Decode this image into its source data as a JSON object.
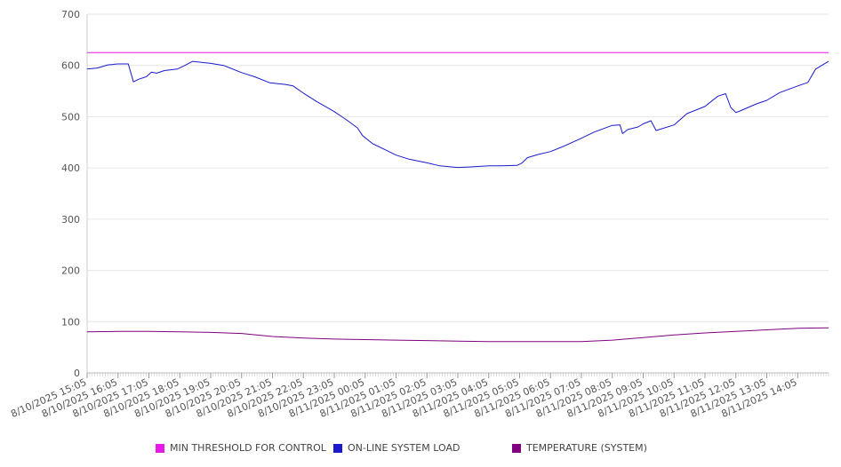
{
  "chart_data": {
    "type": "line",
    "title": "",
    "xlabel": "",
    "ylabel": "",
    "ylim": [
      0,
      700
    ],
    "yticks": [
      "0",
      "100",
      "200",
      "300",
      "400",
      "500",
      "600",
      "700"
    ],
    "grid": true,
    "legend_position": "bottom",
    "x_tick_labels": [
      "8/10/2025 15:05",
      "8/10/2025 16:05",
      "8/10/2025 17:05",
      "8/10/2025 18:05",
      "8/10/2025 19:05",
      "8/10/2025 20:05",
      "8/10/2025 21:05",
      "8/10/2025 22:05",
      "8/10/2025 23:05",
      "8/11/2025 00:05",
      "8/11/2025 01:05",
      "8/11/2025 02:05",
      "8/11/2025 03:05",
      "8/11/2025 04:05",
      "8/11/2025 05:05",
      "8/11/2025 06:05",
      "8/11/2025 07:05",
      "8/11/2025 08:05",
      "8/11/2025 09:05",
      "8/11/2025 10:05",
      "8/11/2025 11:05",
      "8/11/2025 12:05",
      "8/11/2025 13:05",
      "8/11/2025 14:05"
    ],
    "x_start": "8/10/2025 15:05",
    "x_end": "8/11/2025 15:05",
    "series": [
      {
        "name": "MIN THRESHOLD FOR CONTROL",
        "color": "#e619e6",
        "points": [
          [
            "8/10/2025 15:05",
            625
          ],
          [
            "8/11/2025 15:05",
            625
          ]
        ]
      },
      {
        "name": "ON-LINE SYSTEM LOAD",
        "color": "#1a1acc",
        "points": [
          [
            "8/10/2025 15:05",
            593
          ],
          [
            "8/10/2025 15:25",
            595
          ],
          [
            "8/10/2025 15:45",
            601
          ],
          [
            "8/10/2025 16:05",
            603
          ],
          [
            "8/10/2025 16:25",
            603
          ],
          [
            "8/10/2025 16:35",
            568
          ],
          [
            "8/10/2025 16:45",
            573
          ],
          [
            "8/10/2025 17:00",
            578
          ],
          [
            "8/10/2025 17:10",
            587
          ],
          [
            "8/10/2025 17:20",
            585
          ],
          [
            "8/10/2025 17:35",
            590
          ],
          [
            "8/10/2025 18:00",
            593
          ],
          [
            "8/10/2025 18:15",
            600
          ],
          [
            "8/10/2025 18:30",
            608
          ],
          [
            "8/10/2025 19:05",
            604
          ],
          [
            "8/10/2025 19:30",
            600
          ],
          [
            "8/10/2025 20:05",
            586
          ],
          [
            "8/10/2025 20:30",
            578
          ],
          [
            "8/10/2025 21:00",
            566
          ],
          [
            "8/10/2025 21:30",
            563
          ],
          [
            "8/10/2025 21:45",
            560
          ],
          [
            "8/10/2025 22:05",
            546
          ],
          [
            "8/10/2025 22:30",
            530
          ],
          [
            "8/10/2025 23:05",
            510
          ],
          [
            "8/10/2025 23:30",
            493
          ],
          [
            "8/10/2025 23:50",
            478
          ],
          [
            "8/11/2025 00:00",
            463
          ],
          [
            "8/11/2025 00:20",
            447
          ],
          [
            "8/11/2025 00:45",
            435
          ],
          [
            "8/11/2025 01:05",
            425
          ],
          [
            "8/11/2025 01:30",
            417
          ],
          [
            "8/11/2025 02:05",
            410
          ],
          [
            "8/11/2025 02:30",
            404
          ],
          [
            "8/11/2025 03:05",
            401
          ],
          [
            "8/11/2025 03:30",
            402
          ],
          [
            "8/11/2025 04:05",
            404
          ],
          [
            "8/11/2025 04:30",
            404
          ],
          [
            "8/11/2025 05:00",
            405
          ],
          [
            "8/11/2025 05:10",
            410
          ],
          [
            "8/11/2025 05:20",
            420
          ],
          [
            "8/11/2025 05:40",
            426
          ],
          [
            "8/11/2025 06:05",
            432
          ],
          [
            "8/11/2025 06:30",
            442
          ],
          [
            "8/11/2025 07:05",
            458
          ],
          [
            "8/11/2025 07:30",
            470
          ],
          [
            "8/11/2025 08:05",
            483
          ],
          [
            "8/11/2025 08:20",
            484
          ],
          [
            "8/11/2025 08:25",
            467
          ],
          [
            "8/11/2025 08:35",
            475
          ],
          [
            "8/11/2025 08:55",
            480
          ],
          [
            "8/11/2025 09:05",
            486
          ],
          [
            "8/11/2025 09:20",
            492
          ],
          [
            "8/11/2025 09:30",
            473
          ],
          [
            "8/11/2025 10:05",
            484
          ],
          [
            "8/11/2025 10:30",
            506
          ],
          [
            "8/11/2025 11:05",
            520
          ],
          [
            "8/11/2025 11:30",
            540
          ],
          [
            "8/11/2025 11:45",
            545
          ],
          [
            "8/11/2025 11:55",
            518
          ],
          [
            "8/11/2025 12:05",
            508
          ],
          [
            "8/11/2025 12:15",
            512
          ],
          [
            "8/11/2025 12:45",
            525
          ],
          [
            "8/11/2025 13:05",
            532
          ],
          [
            "8/11/2025 13:30",
            547
          ],
          [
            "8/11/2025 14:05",
            560
          ],
          [
            "8/11/2025 14:25",
            567
          ],
          [
            "8/11/2025 14:40",
            593
          ],
          [
            "8/11/2025 15:05",
            608
          ]
        ]
      },
      {
        "name": "TEMPERATURE (SYSTEM)",
        "color": "#800080",
        "points": [
          [
            "8/10/2025 15:05",
            80
          ],
          [
            "8/10/2025 16:05",
            81
          ],
          [
            "8/10/2025 17:05",
            81
          ],
          [
            "8/10/2025 18:05",
            80
          ],
          [
            "8/10/2025 19:05",
            79
          ],
          [
            "8/10/2025 20:05",
            77
          ],
          [
            "8/10/2025 21:05",
            71
          ],
          [
            "8/10/2025 22:05",
            68
          ],
          [
            "8/10/2025 23:05",
            66
          ],
          [
            "8/11/2025 00:05",
            65
          ],
          [
            "8/11/2025 01:05",
            64
          ],
          [
            "8/11/2025 02:05",
            63
          ],
          [
            "8/11/2025 03:05",
            62
          ],
          [
            "8/11/2025 04:05",
            61
          ],
          [
            "8/11/2025 05:05",
            61
          ],
          [
            "8/11/2025 06:05",
            61
          ],
          [
            "8/11/2025 07:05",
            61
          ],
          [
            "8/11/2025 08:05",
            64
          ],
          [
            "8/11/2025 09:05",
            69
          ],
          [
            "8/11/2025 10:05",
            74
          ],
          [
            "8/11/2025 11:05",
            78
          ],
          [
            "8/11/2025 12:05",
            81
          ],
          [
            "8/11/2025 13:05",
            84
          ],
          [
            "8/11/2025 14:05",
            87
          ],
          [
            "8/11/2025 15:05",
            88
          ]
        ]
      }
    ]
  }
}
